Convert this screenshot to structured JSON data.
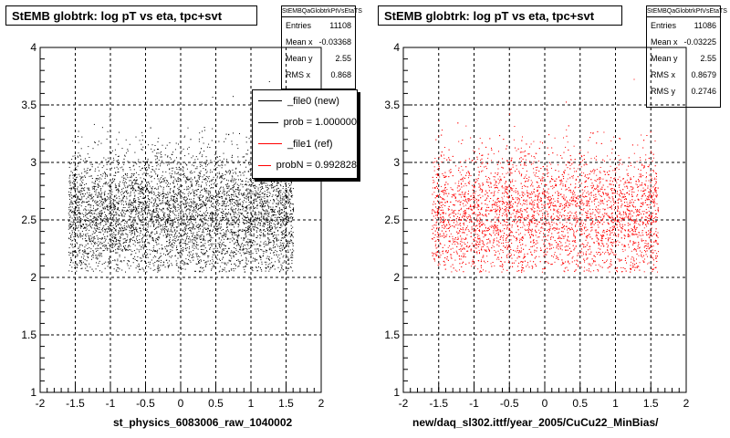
{
  "chart_data": [
    {
      "type": "scatter",
      "title": "StEMB globtrk: log pT vs eta, tpc+svt",
      "xlabel": "st_physics_6083006_raw_1040002",
      "ylabel": "",
      "xlim": [
        -2,
        2
      ],
      "ylim": [
        1,
        4
      ],
      "x_ticks": [
        "-2",
        "-1.5",
        "-1",
        "-0.5",
        "0",
        "0.5",
        "1",
        "1.5",
        "2"
      ],
      "y_ticks": [
        "1",
        "1.5",
        "2",
        "2.5",
        "3",
        "3.5",
        "4"
      ],
      "grid": true,
      "marker_color": "#000000",
      "point_count": 11108,
      "distribution": {
        "x_range": [
          -1.6,
          1.6
        ],
        "y_mean": 2.55,
        "y_rms": 0.27
      },
      "stats": {
        "name": "StEMBQaGlobtrkPtVsEtaTS",
        "rows": [
          {
            "label": "Entries",
            "value": "11108"
          },
          {
            "label": "Mean x",
            "value": "-0.03368"
          },
          {
            "label": "Mean y",
            "value": "2.55"
          },
          {
            "label": "RMS x",
            "value": "0.868"
          }
        ]
      },
      "legend": [
        {
          "label": "_file0 (new)",
          "color": "#000000"
        },
        {
          "label": "prob = 1.000000",
          "color": "#000000"
        },
        {
          "label": "_file1 (ref)",
          "color": "#ff0000"
        },
        {
          "label": "probN = 0.992828",
          "color": "#ff0000"
        }
      ]
    },
    {
      "type": "scatter",
      "title": "StEMB globtrk: log pT vs eta, tpc+svt",
      "xlabel": "new/daq_sl302.ittf/year_2005/CuCu22_MinBias/",
      "ylabel": "",
      "xlim": [
        -2,
        2
      ],
      "ylim": [
        1,
        4
      ],
      "x_ticks": [
        "-2",
        "-1.5",
        "-1",
        "-0.5",
        "0",
        "0.5",
        "1",
        "1.5",
        "2"
      ],
      "y_ticks": [
        "1",
        "1.5",
        "2",
        "2.5",
        "3",
        "3.5",
        "4"
      ],
      "grid": true,
      "marker_color": "#ff0000",
      "point_count": 11086,
      "distribution": {
        "x_range": [
          -1.6,
          1.6
        ],
        "y_mean": 2.55,
        "y_rms": 0.2746
      },
      "stats": {
        "name": "StEMBQaGlobtrkPtVsEtaTS",
        "rows": [
          {
            "label": "Entries",
            "value": "11086"
          },
          {
            "label": "Mean x",
            "value": "-0.03225"
          },
          {
            "label": "Mean y",
            "value": "2.55"
          },
          {
            "label": "RMS x",
            "value": "0.8679"
          },
          {
            "label": "RMS y",
            "value": "0.2746"
          }
        ]
      }
    }
  ]
}
